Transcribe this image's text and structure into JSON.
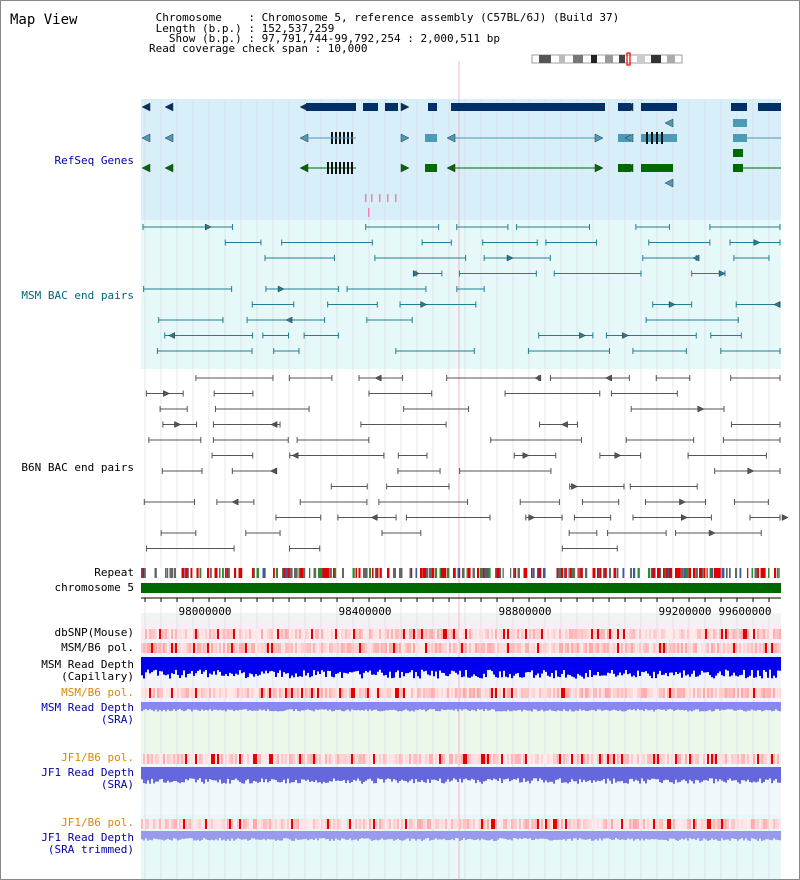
{
  "title": "Map View",
  "info": {
    "line1": " Chromosome    : Chromosome 5, reference assembly (C57BL/6J) (Build 37)",
    "line2": " Length (b.p.) : 152,537,259",
    "line3": "   Show (b.p.) : 97,791,744-99,792,254 : 2,000,511 bp",
    "line4": "Read coverage check span : 10,000"
  },
  "labels": {
    "refseq": "RefSeq Genes",
    "msm_bac": "MSM BAC end pairs",
    "b6n_bac": "B6N BAC end pairs",
    "repeat": "Repeat",
    "chromosome": "chromosome 5",
    "dbsnp": "dbSNP(Mouse)",
    "msm_b6_pol_1": "MSM/B6 pol.",
    "msm_read_depth_cap": "MSM Read Depth",
    "msm_read_depth_cap_sub": "(Capillary)",
    "msm_b6_pol_2": "MSM/B6 pol.",
    "msm_read_depth_sra": "MSM Read Depth",
    "msm_read_depth_sra_sub": "(SRA)",
    "jf1_b6_pol_1": "JF1/B6 pol.",
    "jf1_read_depth_sra": "JF1 Read Depth",
    "jf1_read_depth_sra_sub": "(SRA)",
    "jf1_b6_pol_2": "JF1/B6 pol.",
    "jf1_read_depth_trim": "JF1 Read Depth",
    "jf1_read_depth_trim_sub": "(SRA trimmed)"
  },
  "axis": {
    "ticks": [
      "98000000",
      "98400000",
      "98800000",
      "99200000",
      "99600000"
    ]
  },
  "colors": {
    "label_black": "#000000",
    "label_blue": "#0000aa",
    "label_teal": "#006677",
    "label_orange": "#dd8800",
    "refseq_bg": "#d8eef8",
    "msm_bg": "#e6f8f8",
    "b6n_bg": "#ffffff",
    "gene_navy": "#00306a",
    "gene_blue": "#4a9ab8",
    "gene_green": "#006a00",
    "bac_teal": "#1f7f96",
    "bac_gray": "#555555",
    "chromosome_green": "#006600"
  }
}
